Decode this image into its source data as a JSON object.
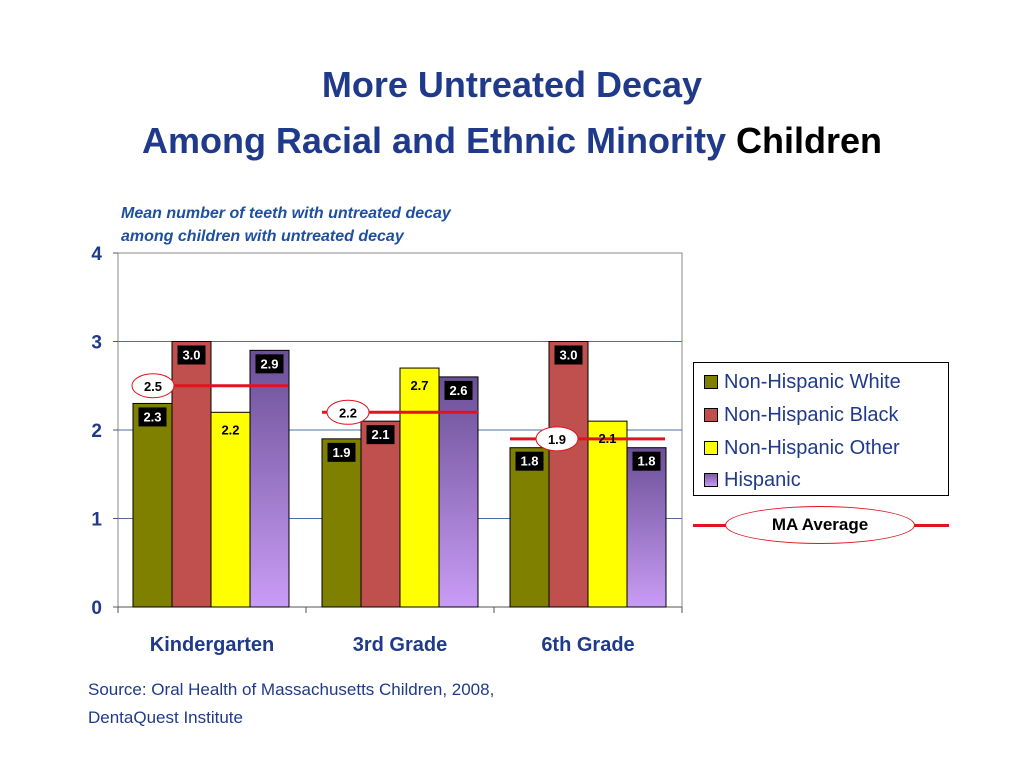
{
  "title_line1": "More Untreated Decay",
  "title_line2_colored": "Among Racial and Ethnic Minority",
  "title_line2_black": "Children",
  "subtitle_line1": "Mean number of teeth with untreated decay",
  "subtitle_line2": "among children with untreated decay",
  "source_line1": "Source: Oral Health of Massachusetts Children, 2008,",
  "source_line2": "DentaQuest Institute",
  "colors": {
    "title": "#1f3a8a",
    "white": "#808000",
    "black": "#c0504d",
    "other": "#ffff00",
    "hispanic": "#7e5aa6",
    "ma_average": "#e0141e"
  },
  "chart_data": {
    "type": "bar",
    "categories": [
      "Kindergarten",
      "3rd Grade",
      "6th Grade"
    ],
    "series": [
      {
        "name": "Non-Hispanic White",
        "values": [
          2.3,
          1.9,
          1.8
        ],
        "labels": [
          "2.3",
          "1.9",
          "1.8"
        ]
      },
      {
        "name": "Non-Hispanic Black",
        "values": [
          3.0,
          2.1,
          3.0
        ],
        "labels": [
          "3.0",
          "2.1",
          "3.0"
        ]
      },
      {
        "name": "Non-Hispanic Other",
        "values": [
          2.2,
          2.7,
          2.1
        ],
        "labels": [
          "2.2",
          "2.7",
          "2.1"
        ]
      },
      {
        "name": "Hispanic",
        "values": [
          2.9,
          2.6,
          1.8
        ],
        "labels": [
          "2.9",
          "2.6",
          "1.8"
        ]
      }
    ],
    "ma_average": {
      "name": "MA Average",
      "values": [
        2.5,
        2.2,
        1.9
      ],
      "labels": [
        "2.5",
        "2.2",
        "1.9"
      ]
    },
    "ylim": [
      0,
      4
    ],
    "yticks": [
      "0",
      "1",
      "2",
      "3",
      "4"
    ],
    "grid": true,
    "legend_position": "right"
  }
}
